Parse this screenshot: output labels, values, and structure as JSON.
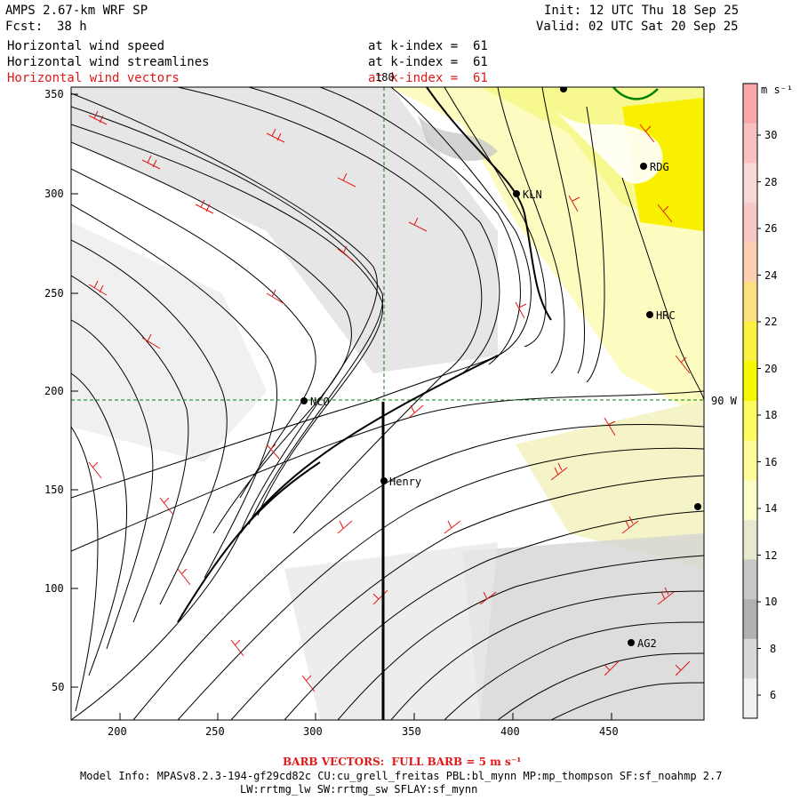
{
  "header": {
    "title": "AMPS 2.67-km WRF SP",
    "init": "Init: 12 UTC Thu 18 Sep 25",
    "fcst_label": "Fcst:",
    "fcst_value": "38 h",
    "valid": "Valid: 02 UTC Sat 20 Sep 25",
    "lines": [
      {
        "name": "Horizontal wind speed",
        "kidx": "at k-index =  61"
      },
      {
        "name": "Horizontal wind streamlines",
        "kidx": "at k-index =  61"
      },
      {
        "name": "Horizontal wind vectors",
        "kidx": "at k-index =  61"
      }
    ]
  },
  "axes": {
    "x_ticks": [
      "200",
      "250",
      "300",
      "350",
      "400",
      "450"
    ],
    "y_ticks": [
      "350",
      "300",
      "250",
      "200",
      "150",
      "100",
      "50"
    ],
    "lon_180": "180",
    "lon_90w": "90 W"
  },
  "stations": [
    {
      "name": "RDG"
    },
    {
      "name": "KLN"
    },
    {
      "name": "HRC"
    },
    {
      "name": "NCO"
    },
    {
      "name": "Henry"
    },
    {
      "name": "AG2"
    }
  ],
  "colorbar": {
    "unit": "m s⁻¹",
    "labels": [
      "30",
      "28",
      "26",
      "24",
      "22",
      "20",
      "18",
      "16",
      "14",
      "12",
      "10",
      "8",
      "6"
    ],
    "colors": [
      "#f8a8a8",
      "#f8c0c0",
      "#f8d8d8",
      "#f8c8c8",
      "#fcd0b0",
      "#fce080",
      "#fcf040",
      "#f8f800",
      "#fcfc60",
      "#fcfc98",
      "#fcfcc8",
      "#e8e8d0",
      "#c8c8c8",
      "#b0b0b0",
      "#d8d8d8",
      "#f0f0f0"
    ]
  },
  "footer": {
    "barb_note": "BARB VECTORS:  FULL BARB = 5 m s⁻¹",
    "model_info": "Model Info: MPASv8.2.3-194-gf29cd82c CU:cu_grell_freitas PBL:bl_mynn MP:mp_thompson SF:sf_noahmp 2.7",
    "model_info_2": "LW:rrtmg_lw SW:rrtmg_sw SFLAY:sf_mynn"
  }
}
